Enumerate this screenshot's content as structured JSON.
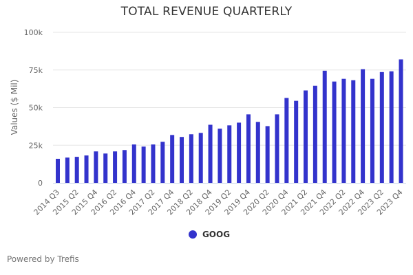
{
  "chart_data": {
    "type": "bar",
    "title": "TOTAL REVENUE QUARTERLY",
    "xlabel": "",
    "ylabel": "Values ($ Mil)",
    "ylim": [
      0,
      100000
    ],
    "yticks": [
      0,
      25000,
      50000,
      75000,
      100000
    ],
    "ytick_labels": [
      "0",
      "25k",
      "50k",
      "75k",
      "100k"
    ],
    "grid": true,
    "legend_position": "bottom",
    "categories": [
      "2014 Q3",
      "2015 Q1",
      "2015 Q2",
      "2015 Q3",
      "2015 Q4",
      "2016 Q1",
      "2016 Q2",
      "2016 Q3",
      "2016 Q4",
      "2017 Q1",
      "2017 Q2",
      "2017 Q3",
      "2017 Q4",
      "2018 Q1",
      "2018 Q2",
      "2018 Q3",
      "2018 Q4",
      "2019 Q1",
      "2019 Q2",
      "2019 Q3",
      "2019 Q4",
      "2020 Q1",
      "2020 Q2",
      "2020 Q3",
      "2020 Q4",
      "2021 Q1",
      "2021 Q2",
      "2021 Q3",
      "2021 Q4",
      "2022 Q1",
      "2022 Q2",
      "2022 Q3",
      "2022 Q4",
      "2023 Q1",
      "2023 Q2",
      "2023 Q3",
      "2023 Q4"
    ],
    "xtick_labels": [
      "2014 Q3",
      "2015 Q2",
      "2015 Q4",
      "2016 Q2",
      "2016 Q4",
      "2017 Q2",
      "2017 Q4",
      "2018 Q2",
      "2018 Q4",
      "2019 Q2",
      "2019 Q4",
      "2020 Q2",
      "2020 Q4",
      "2021 Q2",
      "2021 Q4",
      "2022 Q2",
      "2022 Q4",
      "2023 Q2",
      "2023 Q4"
    ],
    "series": [
      {
        "name": "GOOG",
        "color": "#3333CC",
        "values": [
          16000,
          16800,
          17300,
          18200,
          20900,
          19500,
          20900,
          21800,
          25500,
          24100,
          25500,
          27300,
          31800,
          30500,
          32300,
          33200,
          38600,
          36000,
          38200,
          40000,
          45500,
          40500,
          37700,
          45500,
          56400,
          54500,
          61400,
          64500,
          74500,
          67300,
          69100,
          68200,
          75500,
          69100,
          73600,
          74100,
          82000
        ]
      }
    ]
  },
  "footer": {
    "credit": "Powered by Trefis"
  }
}
